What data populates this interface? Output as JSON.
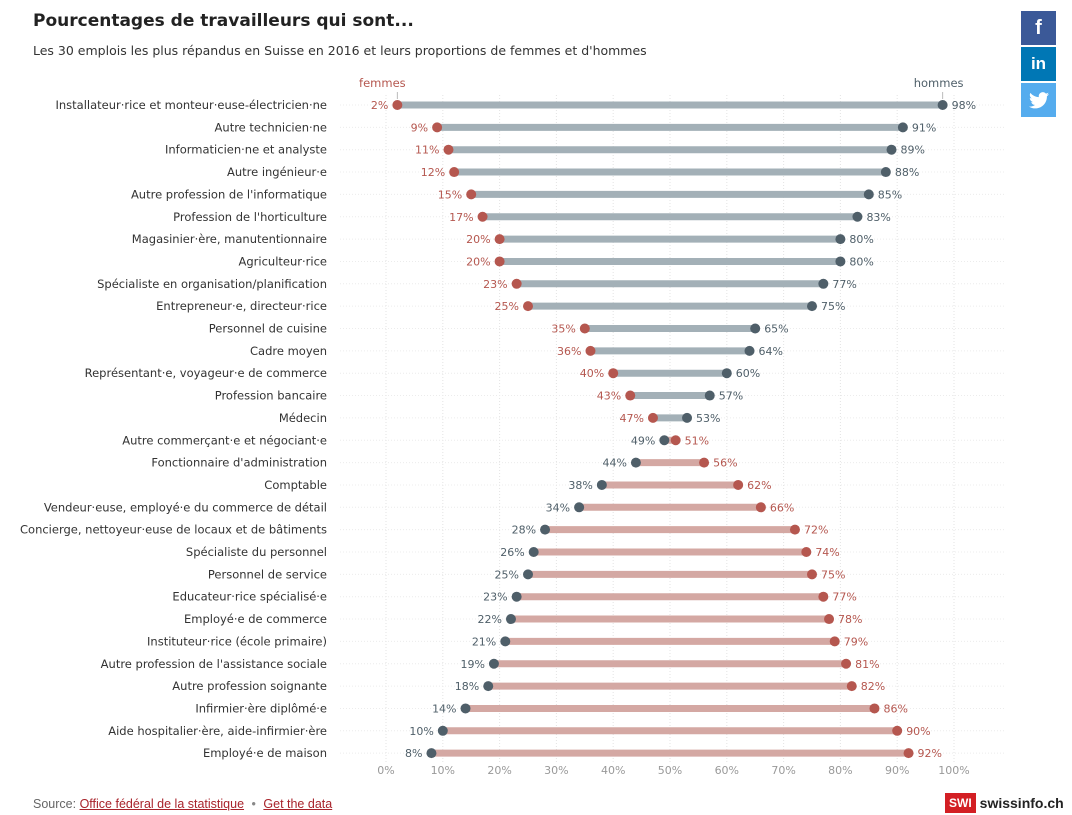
{
  "header": {
    "title": "Pourcentages de travailleurs qui sont...",
    "subtitle": "Les 30 emplois les plus répandus en Suisse en 2016 et leurs proportions de femmes et d'hommes"
  },
  "share": {
    "facebook": "f",
    "linkedin": "in",
    "twitter": "twitter"
  },
  "colors": {
    "women": "#b5574f",
    "men": "#4f5f69",
    "bar_men_dominant": "#a3b0b7",
    "bar_women_dominant": "#d4a8a3"
  },
  "chart_data": {
    "type": "dumbbell",
    "legend": {
      "women": "femmes",
      "men": "hommes"
    },
    "x_ticks": [
      "0%",
      "10%",
      "20%",
      "30%",
      "40%",
      "50%",
      "60%",
      "70%",
      "80%",
      "90%",
      "100%"
    ],
    "xlim": [
      0,
      100
    ],
    "grid": true,
    "categories": [
      "Installateur·rice et monteur·euse-électricien·ne",
      "Autre technicien·ne",
      "Informaticien·ne et analyste",
      "Autre ingénieur·e",
      "Autre profession de l'informatique",
      "Profession de l'horticulture",
      "Magasinier·ère, manutentionnaire",
      "Agriculteur·rice",
      "Spécialiste en organisation/planification",
      "Entrepreneur·e, directeur·rice",
      "Personnel de cuisine",
      "Cadre moyen",
      "Représentant·e, voyageur·e de commerce",
      "Profession bancaire",
      "Médecin",
      "Autre commerçant·e et négociant·e",
      "Fonctionnaire d'administration",
      "Comptable",
      "Vendeur·euse, employé·e du commerce de détail",
      "Concierge, nettoyeur·euse de locaux et de bâtiments",
      "Spécialiste du personnel",
      "Personnel de service",
      "Educateur·rice spécialisé·e",
      "Employé·e de commerce",
      "Instituteur·rice (école primaire)",
      "Autre profession de l'assistance sociale",
      "Autre profession soignante",
      "Infirmier·ère diplômé·e",
      "Aide hospitalier·ère, aide-infirmier·ère",
      "Employé·e de maison"
    ],
    "series": [
      {
        "name": "femmes",
        "values": [
          2,
          9,
          11,
          12,
          15,
          17,
          20,
          20,
          23,
          25,
          35,
          36,
          40,
          43,
          47,
          51,
          56,
          62,
          66,
          72,
          74,
          75,
          77,
          78,
          79,
          81,
          82,
          86,
          90,
          92
        ]
      },
      {
        "name": "hommes",
        "values": [
          98,
          91,
          89,
          88,
          85,
          83,
          80,
          80,
          77,
          75,
          65,
          64,
          60,
          57,
          53,
          49,
          44,
          38,
          34,
          28,
          26,
          25,
          23,
          22,
          21,
          19,
          18,
          14,
          10,
          8
        ]
      }
    ]
  },
  "footer": {
    "source_label": "Source:",
    "source_link": "Office fédéral de la statistique",
    "separator": "•",
    "data_link": "Get the data"
  },
  "logo": {
    "badge": "SWI",
    "name": "swissinfo.ch"
  }
}
